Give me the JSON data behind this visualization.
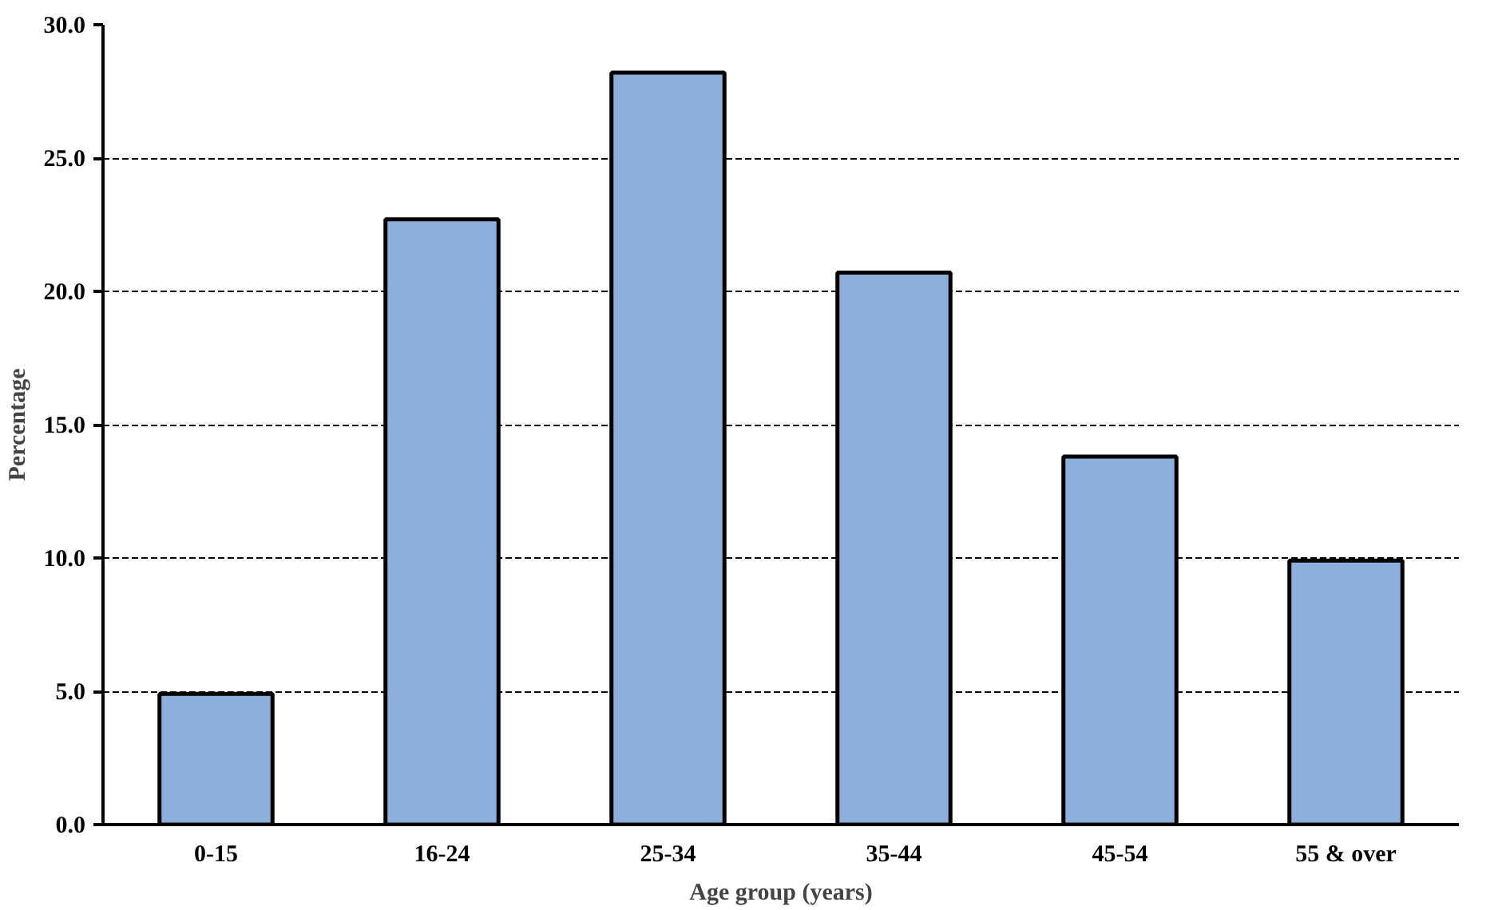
{
  "chart_data": {
    "type": "bar",
    "xlabel": "Age group (years)",
    "ylabel": "Percentage",
    "categories": [
      "0-15",
      "16-24",
      "25-34",
      "35-44",
      "45-54",
      "55 & over"
    ],
    "values": [
      4.9,
      22.7,
      28.2,
      20.7,
      13.8,
      9.9
    ],
    "color": "#8eaedb",
    "ylim": [
      0,
      30
    ],
    "yticks": [
      {
        "value": 0,
        "label": "0.0"
      },
      {
        "value": 5,
        "label": "5.0"
      },
      {
        "value": 10,
        "label": "10.0"
      },
      {
        "value": 15,
        "label": "15.0"
      },
      {
        "value": 20,
        "label": "20.0"
      },
      {
        "value": 25,
        "label": "25.0"
      },
      {
        "value": 30,
        "label": "30.0"
      }
    ],
    "grid": "y",
    "line_style": "dashed"
  }
}
